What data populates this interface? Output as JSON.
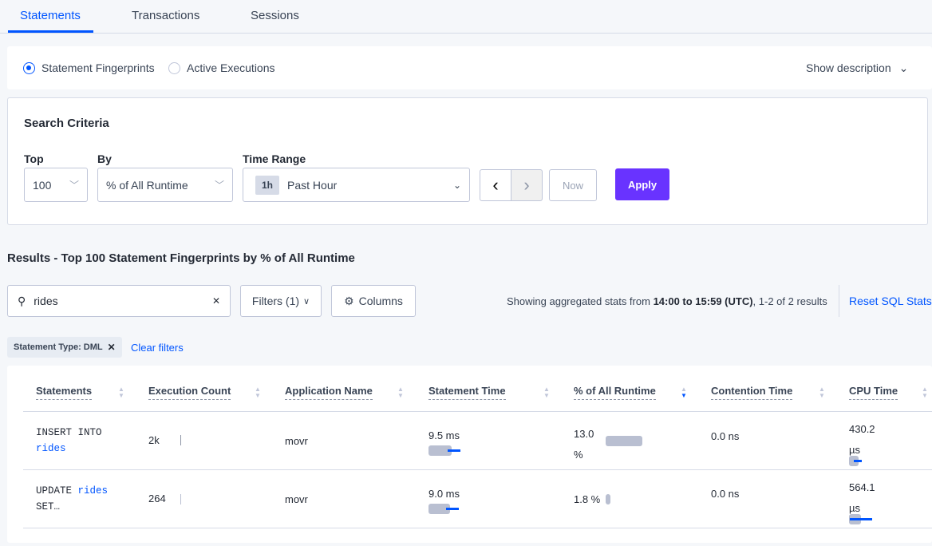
{
  "tabs": [
    {
      "label": "Statements",
      "active": true
    },
    {
      "label": "Transactions"
    },
    {
      "label": "Sessions"
    }
  ],
  "view_toggle": {
    "options": [
      "Statement Fingerprints",
      "Active Executions"
    ],
    "selected": "Statement Fingerprints",
    "show_description": "Show description"
  },
  "search_criteria": {
    "title": "Search Criteria",
    "top_label": "Top",
    "top_value": "100",
    "by_label": "By",
    "by_value": "% of All Runtime",
    "time_range_label": "Time Range",
    "time_badge": "1h",
    "time_value": "Past Hour",
    "now_label": "Now",
    "apply_label": "Apply"
  },
  "results": {
    "title": "Results - Top 100 Statement Fingerprints by % of All Runtime",
    "search_value": "rides",
    "filters_label": "Filters (1)",
    "columns_label": "Columns",
    "summary_prefix": "Showing aggregated stats from ",
    "summary_range": "14:00 to 15:59 (UTC)",
    "summary_suffix": ", 1-2 of 2 results",
    "reset_label": "Reset SQL Stats",
    "filter_tag": "Statement Type: DML",
    "clear_filters": "Clear filters"
  },
  "table": {
    "columns": [
      "Statements",
      "Execution Count",
      "Application Name",
      "Statement Time",
      "% of All Runtime",
      "Contention Time",
      "CPU Time"
    ],
    "sorted_column": "% of All Runtime",
    "sort_direction": "descending",
    "rows": [
      {
        "stmt_a": "INSERT INTO",
        "stmt_b": "rides",
        "stmt_c": "",
        "exec_count": "2k",
        "app": "movr",
        "stmt_time": "9.5 ms",
        "pct_a": "13.0",
        "pct_b": "%",
        "pct_fraction": 0.13,
        "contention": "0.0 ns",
        "cpu_a": "430.2",
        "cpu_b": "µs"
      },
      {
        "stmt_a": "UPDATE",
        "stmt_b": "rides",
        "stmt_c": "SET…",
        "exec_count": "264",
        "app": "movr",
        "stmt_time": "9.0 ms",
        "pct_a": "1.8 %",
        "pct_b": "",
        "pct_fraction": 0.018,
        "contention": "0.0 ns",
        "cpu_a": "564.1",
        "cpu_b": "µs"
      }
    ]
  },
  "colors": {
    "accent": "#0055ff",
    "apply": "#6933ff",
    "bar": "#b9bfd1"
  }
}
